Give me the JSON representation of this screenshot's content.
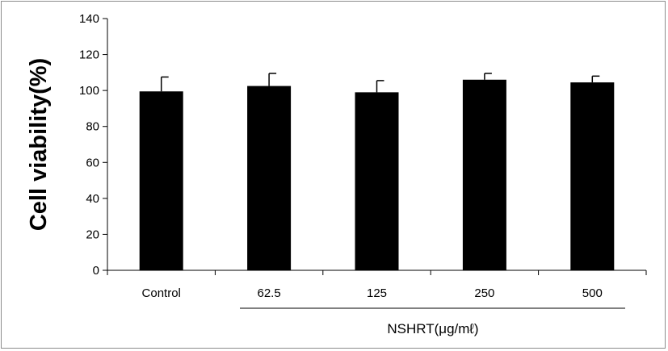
{
  "chart_data": {
    "type": "bar",
    "ylabel": "Cell viability(%)",
    "group_label": "NSHRT(μg/mℓ)",
    "categories": [
      "Control",
      "62.5",
      "125",
      "250",
      "500"
    ],
    "values": [
      99.5,
      102.5,
      99,
      106,
      104.5
    ],
    "errors": [
      8,
      7,
      6.5,
      3.5,
      3.5
    ],
    "ylim": [
      0,
      140
    ],
    "yticks": [
      "0",
      "20",
      "40",
      "60",
      "80",
      "100",
      "120",
      "140"
    ],
    "bar_color": "#000000",
    "grid": false,
    "legend": "none"
  }
}
